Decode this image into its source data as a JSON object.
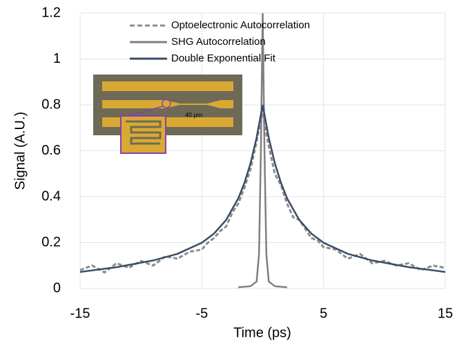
{
  "chart_data": {
    "type": "line",
    "xlabel": "Time (ps)",
    "ylabel": "Signal (A.U.)",
    "xlim": [
      -15,
      15
    ],
    "ylim": [
      0,
      1.2
    ],
    "xticks": [
      -15,
      -5,
      5,
      15
    ],
    "yticks": [
      0,
      0.2,
      0.4,
      0.6,
      0.8,
      1,
      1.2
    ],
    "grid": true,
    "legend": "top",
    "inset_label": "40 μm",
    "series": [
      {
        "name": "Optoelectronic Autocorrelation",
        "color": "#8c8c8c",
        "style": "dashed",
        "x": [
          -15,
          -14,
          -13,
          -12,
          -11,
          -10,
          -9,
          -8,
          -7,
          -6,
          -5,
          -4.5,
          -4,
          -3.5,
          -3,
          -2.5,
          -2,
          -1.5,
          -1,
          -0.5,
          -0.2,
          0,
          0.2,
          0.5,
          1,
          1.5,
          2,
          2.5,
          3,
          3.5,
          4,
          4.5,
          5,
          6,
          7,
          8,
          9,
          10,
          11,
          12,
          13,
          14,
          15
        ],
        "values": [
          0.08,
          0.1,
          0.07,
          0.11,
          0.09,
          0.12,
          0.1,
          0.14,
          0.13,
          0.16,
          0.17,
          0.2,
          0.22,
          0.25,
          0.27,
          0.33,
          0.37,
          0.44,
          0.52,
          0.64,
          0.72,
          0.78,
          0.7,
          0.62,
          0.5,
          0.45,
          0.37,
          0.31,
          0.3,
          0.26,
          0.22,
          0.21,
          0.18,
          0.17,
          0.13,
          0.15,
          0.11,
          0.12,
          0.1,
          0.11,
          0.08,
          0.1,
          0.09
        ]
      },
      {
        "name": "SHG Autocorrelation",
        "color": "#7f7f7f",
        "style": "solid",
        "x": [
          -2,
          -1,
          -0.5,
          -0.3,
          -0.15,
          0,
          0.15,
          0.3,
          0.5,
          1,
          2
        ],
        "values": [
          0.005,
          0.01,
          0.03,
          0.15,
          0.6,
          1.2,
          0.6,
          0.15,
          0.03,
          0.01,
          0.005
        ]
      },
      {
        "name": "Double Exponential Fit",
        "color": "#3a4d66",
        "style": "solid",
        "x": [
          -15,
          -12,
          -9,
          -7,
          -5,
          -4,
          -3,
          -2,
          -1.5,
          -1,
          -0.5,
          0,
          0.5,
          1,
          1.5,
          2,
          3,
          4,
          5,
          7,
          9,
          12,
          15
        ],
        "values": [
          0.072,
          0.093,
          0.122,
          0.151,
          0.199,
          0.239,
          0.299,
          0.393,
          0.46,
          0.546,
          0.657,
          0.8,
          0.657,
          0.546,
          0.46,
          0.393,
          0.299,
          0.239,
          0.199,
          0.151,
          0.122,
          0.093,
          0.072
        ]
      }
    ]
  }
}
